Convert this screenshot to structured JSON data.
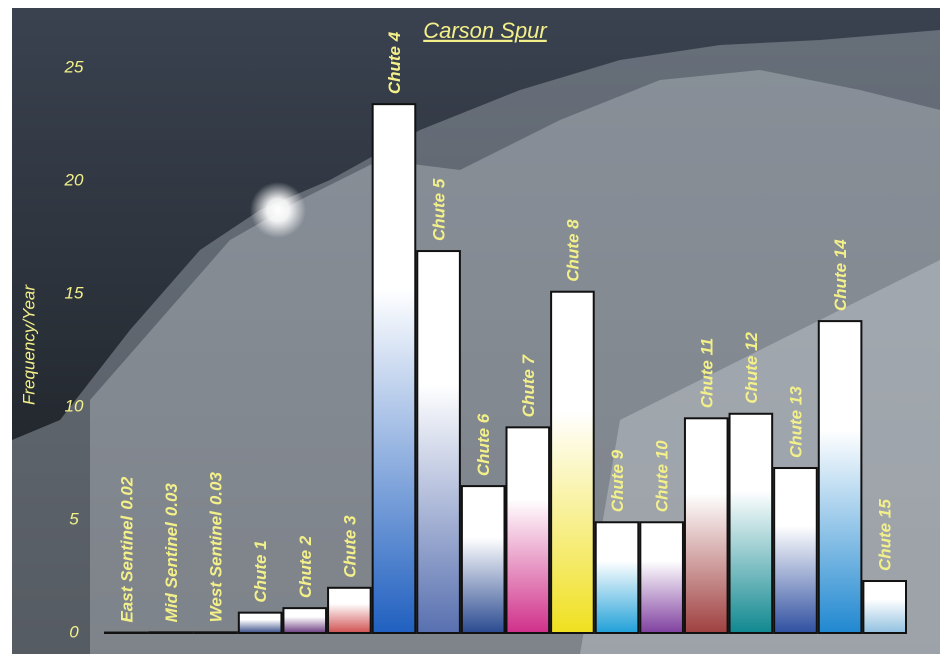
{
  "chart_data": {
    "type": "bar",
    "title": "Carson Spur",
    "y_label": "Frequency/Year",
    "categories": [
      "East Sentinel",
      "Mid Sentinel",
      "West Sentinel",
      "Chute 1",
      "Chute 2",
      "Chute 3",
      "Chute 4",
      "Chute 5",
      "Chute 6",
      "Chute 7",
      "Chute 8",
      "Chute 9",
      "Chute 10",
      "Chute 11",
      "Chute 12",
      "Chute 13",
      "Chute 14",
      "Chute 15"
    ],
    "values": [
      0.02,
      0.03,
      0.03,
      0.9,
      1.1,
      2.0,
      23.4,
      16.9,
      6.5,
      9.1,
      15.1,
      4.9,
      4.9,
      9.5,
      9.7,
      7.3,
      13.8,
      2.3
    ],
    "value_labels": [
      "0.02",
      "0.03",
      "0.03",
      null,
      null,
      null,
      null,
      null,
      null,
      null,
      null,
      null,
      null,
      null,
      null,
      null,
      null,
      null
    ],
    "colors": [
      "#ffffff",
      "#ffffff",
      "#ffffff",
      "#3a4f8a",
      "#6a3c80",
      "#d05050",
      "#2060c0",
      "#5870b0",
      "#2a4a90",
      "#d0308a",
      "#f0e020",
      "#20a0d8",
      "#8040a0",
      "#a04040",
      "#108890",
      "#3050a0",
      "#2088d0",
      "#90c0e0"
    ],
    "ylim": [
      0,
      25
    ],
    "yticks": [
      0,
      5,
      10,
      15,
      20,
      25
    ]
  }
}
